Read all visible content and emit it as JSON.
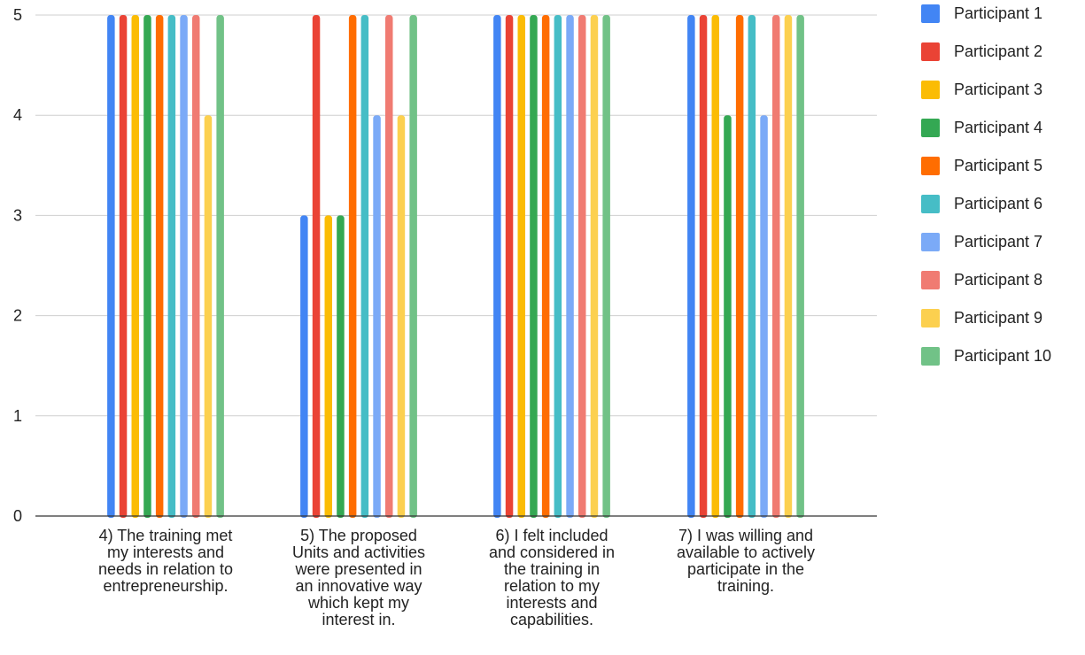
{
  "chart_data": {
    "type": "bar",
    "title": "",
    "xlabel": "",
    "ylabel": "",
    "ylim": [
      0,
      5
    ],
    "yticks": [
      "0",
      "1",
      "2",
      "3",
      "4",
      "5"
    ],
    "grid": true,
    "legend_position": "right",
    "categories": [
      "4) The training met my interests and needs in relation to entrepreneurship.",
      "5) The proposed Units and activities were presented in an innovative way which kept my interest in.",
      "6) I felt included and considered in the training in relation to my interests and capabilities.",
      "7) I was willing and available to actively participate in the training."
    ],
    "category_lines": [
      [
        "4) The training met",
        "my interests and",
        "needs in relation to",
        "entrepreneurship."
      ],
      [
        "5) The proposed",
        "Units and activities",
        "were presented in",
        "an innovative way",
        "which kept my",
        "interest in."
      ],
      [
        "6) I felt included",
        "and considered in",
        "the training in",
        "relation to my",
        "interests and",
        "capabilities."
      ],
      [
        "7) I was willing and",
        "available to actively",
        "participate in the",
        "training."
      ]
    ],
    "series": [
      {
        "name": "Participant 1",
        "color": "#4285f4",
        "values": [
          5,
          3,
          5,
          5
        ]
      },
      {
        "name": "Participant 2",
        "color": "#ea4335",
        "values": [
          5,
          5,
          5,
          5
        ]
      },
      {
        "name": "Participant 3",
        "color": "#fbbc04",
        "values": [
          5,
          3,
          5,
          5
        ]
      },
      {
        "name": "Participant 4",
        "color": "#34a853",
        "values": [
          5,
          3,
          5,
          4
        ]
      },
      {
        "name": "Participant 5",
        "color": "#ff6d01",
        "values": [
          5,
          5,
          5,
          5
        ]
      },
      {
        "name": "Participant 6",
        "color": "#46bdc6",
        "values": [
          5,
          5,
          5,
          5
        ]
      },
      {
        "name": "Participant 7",
        "color": "#7baaf7",
        "values": [
          5,
          4,
          5,
          4
        ]
      },
      {
        "name": "Participant 8",
        "color": "#f07b72",
        "values": [
          5,
          5,
          5,
          5
        ]
      },
      {
        "name": "Participant 9",
        "color": "#fcd04f",
        "values": [
          4,
          4,
          5,
          5
        ]
      },
      {
        "name": "Participant 10",
        "color": "#71c287",
        "values": [
          5,
          5,
          5,
          5
        ]
      }
    ]
  }
}
